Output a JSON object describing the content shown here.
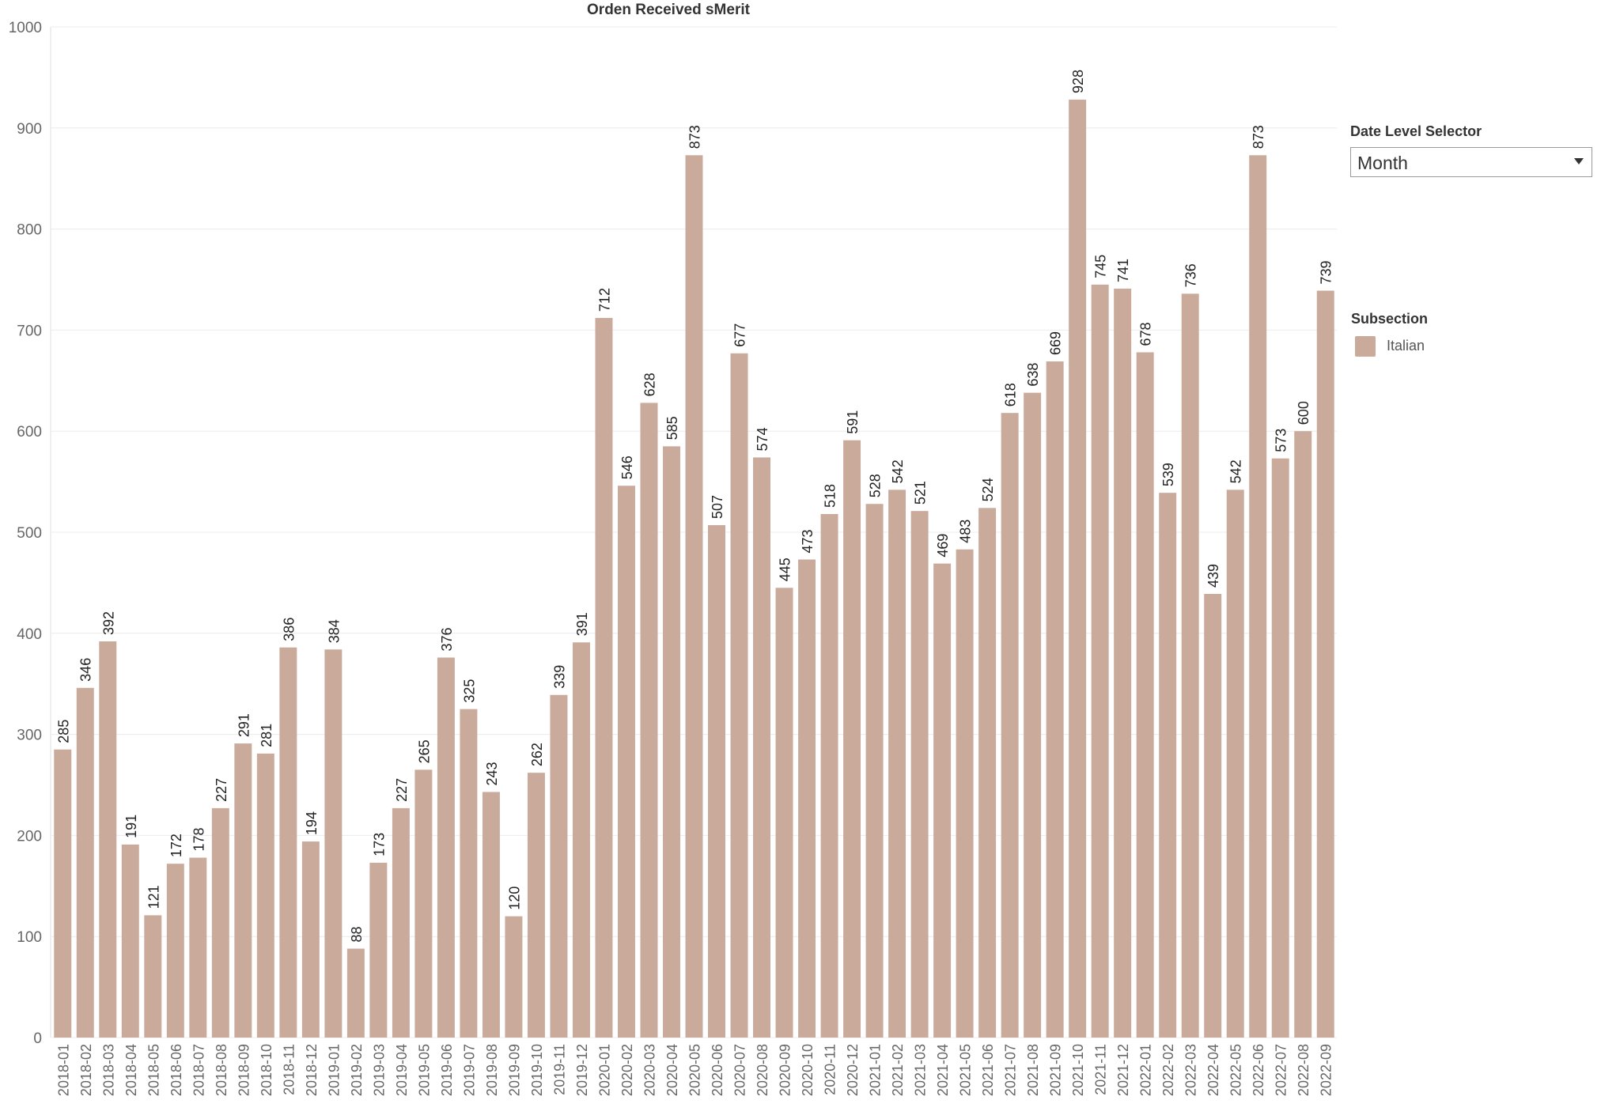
{
  "chart_data": {
    "type": "bar",
    "title": "Orden Received sMerit",
    "xlabel": "",
    "ylabel": "",
    "ylim": [
      0,
      1000
    ],
    "yticks": [
      0,
      100,
      200,
      300,
      400,
      500,
      600,
      700,
      800,
      900,
      1000
    ],
    "grid": true,
    "categories": [
      "2018-01",
      "2018-02",
      "2018-03",
      "2018-04",
      "2018-05",
      "2018-06",
      "2018-07",
      "2018-08",
      "2018-09",
      "2018-10",
      "2018-11",
      "2018-12",
      "2019-01",
      "2019-02",
      "2019-03",
      "2019-04",
      "2019-05",
      "2019-06",
      "2019-07",
      "2019-08",
      "2019-09",
      "2019-10",
      "2019-11",
      "2019-12",
      "2020-01",
      "2020-02",
      "2020-03",
      "2020-04",
      "2020-05",
      "2020-06",
      "2020-07",
      "2020-08",
      "2020-09",
      "2020-10",
      "2020-11",
      "2020-12",
      "2021-01",
      "2021-02",
      "2021-03",
      "2021-04",
      "2021-05",
      "2021-06",
      "2021-07",
      "2021-08",
      "2021-09",
      "2021-10",
      "2021-11",
      "2021-12",
      "2022-01",
      "2022-02",
      "2022-03",
      "2022-04",
      "2022-05",
      "2022-06",
      "2022-07",
      "2022-08",
      "2022-09"
    ],
    "series": [
      {
        "name": "Italian",
        "color": "#c9aa9b",
        "values": [
          285,
          346,
          392,
          191,
          121,
          172,
          178,
          227,
          291,
          281,
          386,
          194,
          384,
          88,
          173,
          227,
          265,
          376,
          325,
          243,
          120,
          262,
          339,
          391,
          712,
          546,
          628,
          585,
          873,
          507,
          677,
          574,
          445,
          473,
          518,
          591,
          528,
          542,
          521,
          469,
          483,
          524,
          618,
          638,
          669,
          928,
          745,
          741,
          678,
          539,
          736,
          439,
          542,
          873,
          573,
          600,
          739
        ]
      }
    ],
    "legend_position": "right"
  },
  "controls": {
    "date_level_label": "Date Level Selector",
    "date_level_value": "Month"
  },
  "legend": {
    "title": "Subsection",
    "items": [
      {
        "label": "Italian",
        "color": "#c9aa9b"
      }
    ]
  }
}
